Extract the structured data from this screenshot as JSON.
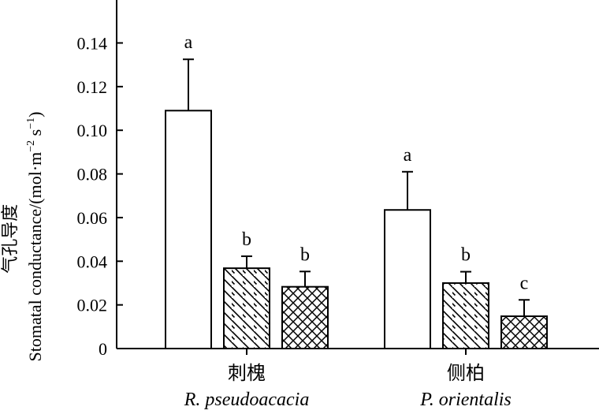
{
  "chart_data": {
    "type": "bar",
    "ylabel_cn": "气孔导度",
    "ylabel_en": "Stomatal conductance/(mol·m",
    "ylabel_sup1": "−2",
    "ylabel_mid": " s",
    "ylabel_sup2": "−1",
    "ylabel_end": ")",
    "ylim": [
      0,
      0.16
    ],
    "yticks": [
      {
        "value": 0,
        "label": "0"
      },
      {
        "value": 0.02,
        "label": "0.02"
      },
      {
        "value": 0.04,
        "label": "0.04"
      },
      {
        "value": 0.06,
        "label": "0.06"
      },
      {
        "value": 0.08,
        "label": "0.08"
      },
      {
        "value": 0.1,
        "label": "0.10"
      },
      {
        "value": 0.12,
        "label": "0.12"
      },
      {
        "value": 0.14,
        "label": "0.14"
      }
    ],
    "categories": [
      {
        "cn": "刺槐",
        "en": "R. pseudoacacia"
      },
      {
        "cn": "侧柏",
        "en": "P. orientalis"
      }
    ],
    "series": [
      {
        "pattern": "none",
        "values": [
          0.109,
          0.0635
        ],
        "errors": [
          0.0235,
          0.0175
        ],
        "letters": [
          "a",
          "a"
        ]
      },
      {
        "pattern": "diagonal",
        "values": [
          0.0368,
          0.03
        ],
        "errors": [
          0.0055,
          0.0052
        ],
        "letters": [
          "b",
          "b"
        ]
      },
      {
        "pattern": "crosshatch",
        "values": [
          0.0283,
          0.0148
        ],
        "errors": [
          0.007,
          0.0075
        ],
        "letters": [
          "b",
          "c"
        ]
      }
    ],
    "grid": false,
    "legend": "none",
    "colors": {
      "bar_fill": "#ffffff",
      "stroke": "#000000"
    }
  }
}
